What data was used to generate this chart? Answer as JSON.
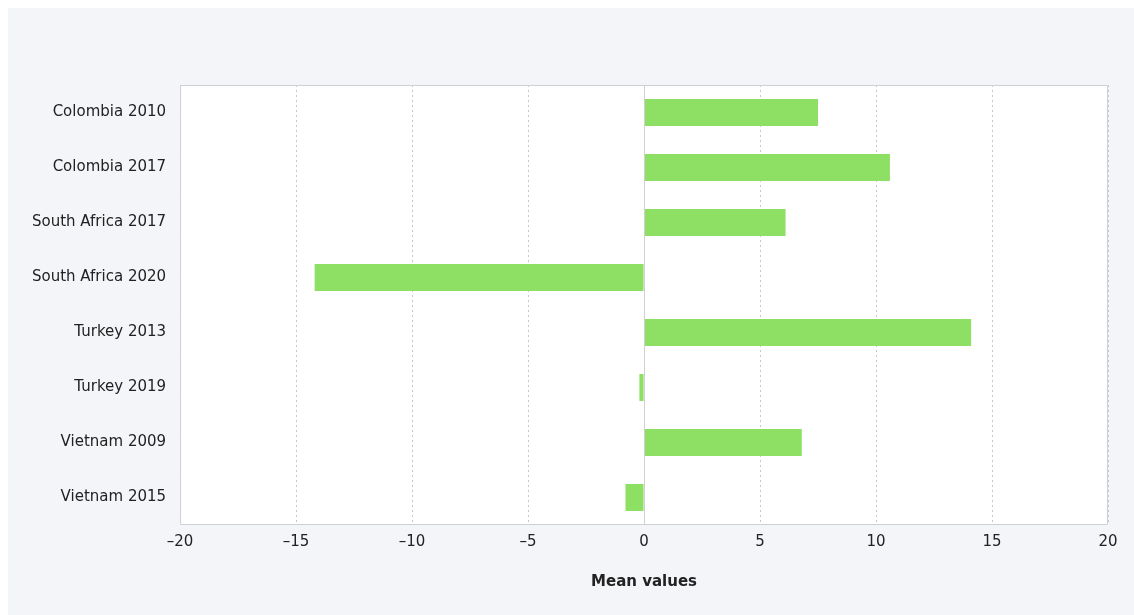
{
  "chart_data": {
    "type": "bar",
    "orientation": "horizontal",
    "xlabel": "Mean values",
    "categories": [
      "Colombia 2010",
      "Colombia 2017",
      "South Africa 2017",
      "South Africa 2020",
      "Turkey 2013",
      "Turkey 2019",
      "Vietnam 2009",
      "Vietnam 2015"
    ],
    "values": [
      7.5,
      10.6,
      6.1,
      -14.2,
      14.1,
      -0.2,
      6.8,
      -0.8
    ],
    "color": "#8ee064",
    "xlim": [
      -20,
      20
    ],
    "xticks": [
      {
        "value": -20,
        "label": "–20"
      },
      {
        "value": -15,
        "label": "–15"
      },
      {
        "value": -10,
        "label": "–10"
      },
      {
        "value": -5,
        "label": "–5"
      },
      0,
      5,
      10,
      15,
      20
    ],
    "grid": "x"
  }
}
